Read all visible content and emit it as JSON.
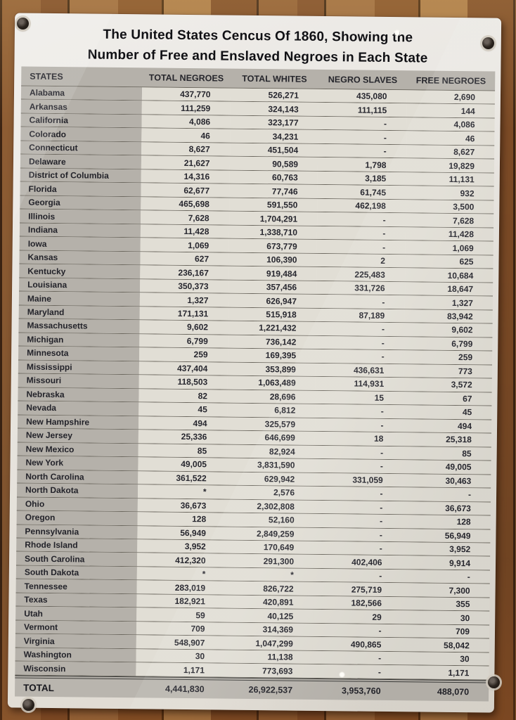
{
  "poster": {
    "title_line1": "The United States Cencus Of 1860, Showing the",
    "title_line2": "Number of Free and Enslaved Negroes in Each State",
    "table": {
      "columns": [
        "STATES",
        "TOTAL NEGROES",
        "TOTAL WHITES",
        "NEGRO SLAVES",
        "FREE NEGROES"
      ],
      "rows": [
        {
          "state": "Alabama",
          "values": [
            "437,770",
            "526,271",
            "435,080",
            "2,690"
          ]
        },
        {
          "state": "Arkansas",
          "values": [
            "111,259",
            "324,143",
            "111,115",
            "144"
          ]
        },
        {
          "state": "California",
          "values": [
            "4,086",
            "323,177",
            "-",
            "4,086"
          ]
        },
        {
          "state": "Colorado",
          "values": [
            "46",
            "34,231",
            "-",
            "46"
          ]
        },
        {
          "state": "Connecticut",
          "values": [
            "8,627",
            "451,504",
            "-",
            "8,627"
          ]
        },
        {
          "state": "Delaware",
          "values": [
            "21,627",
            "90,589",
            "1,798",
            "19,829"
          ]
        },
        {
          "state": "District of Columbia",
          "values": [
            "14,316",
            "60,763",
            "3,185",
            "11,131"
          ]
        },
        {
          "state": "Florida",
          "values": [
            "62,677",
            "77,746",
            "61,745",
            "932"
          ]
        },
        {
          "state": "Georgia",
          "values": [
            "465,698",
            "591,550",
            "462,198",
            "3,500"
          ]
        },
        {
          "state": "Illinois",
          "values": [
            "7,628",
            "1,704,291",
            "-",
            "7,628"
          ]
        },
        {
          "state": "Indiana",
          "values": [
            "11,428",
            "1,338,710",
            "-",
            "11,428"
          ]
        },
        {
          "state": "Iowa",
          "values": [
            "1,069",
            "673,779",
            "-",
            "1,069"
          ]
        },
        {
          "state": "Kansas",
          "values": [
            "627",
            "106,390",
            "2",
            "625"
          ]
        },
        {
          "state": "Kentucky",
          "values": [
            "236,167",
            "919,484",
            "225,483",
            "10,684"
          ]
        },
        {
          "state": "Louisiana",
          "values": [
            "350,373",
            "357,456",
            "331,726",
            "18,647"
          ]
        },
        {
          "state": "Maine",
          "values": [
            "1,327",
            "626,947",
            "-",
            "1,327"
          ]
        },
        {
          "state": "Maryland",
          "values": [
            "171,131",
            "515,918",
            "87,189",
            "83,942"
          ]
        },
        {
          "state": "Massachusetts",
          "values": [
            "9,602",
            "1,221,432",
            "-",
            "9,602"
          ]
        },
        {
          "state": "Michigan",
          "values": [
            "6,799",
            "736,142",
            "-",
            "6,799"
          ]
        },
        {
          "state": "Minnesota",
          "values": [
            "259",
            "169,395",
            "-",
            "259"
          ]
        },
        {
          "state": "Mississippi",
          "values": [
            "437,404",
            "353,899",
            "436,631",
            "773"
          ]
        },
        {
          "state": "Missouri",
          "values": [
            "118,503",
            "1,063,489",
            "114,931",
            "3,572"
          ]
        },
        {
          "state": "Nebraska",
          "values": [
            "82",
            "28,696",
            "15",
            "67"
          ]
        },
        {
          "state": "Nevada",
          "values": [
            "45",
            "6,812",
            "-",
            "45"
          ]
        },
        {
          "state": "New Hampshire",
          "values": [
            "494",
            "325,579",
            "-",
            "494"
          ]
        },
        {
          "state": "New Jersey",
          "values": [
            "25,336",
            "646,699",
            "18",
            "25,318"
          ]
        },
        {
          "state": "New Mexico",
          "values": [
            "85",
            "82,924",
            "-",
            "85"
          ]
        },
        {
          "state": "New York",
          "values": [
            "49,005",
            "3,831,590",
            "-",
            "49,005"
          ]
        },
        {
          "state": "North Carolina",
          "values": [
            "361,522",
            "629,942",
            "331,059",
            "30,463"
          ]
        },
        {
          "state": "North Dakota",
          "values": [
            "*",
            "2,576",
            "-",
            "-"
          ]
        },
        {
          "state": "Ohio",
          "values": [
            "36,673",
            "2,302,808",
            "-",
            "36,673"
          ]
        },
        {
          "state": "Oregon",
          "values": [
            "128",
            "52,160",
            "-",
            "128"
          ]
        },
        {
          "state": "Pennsylvania",
          "values": [
            "56,949",
            "2,849,259",
            "-",
            "56,949"
          ]
        },
        {
          "state": "Rhode Island",
          "values": [
            "3,952",
            "170,649",
            "-",
            "3,952"
          ]
        },
        {
          "state": "South Carolina",
          "values": [
            "412,320",
            "291,300",
            "402,406",
            "9,914"
          ]
        },
        {
          "state": "South Dakota",
          "values": [
            "*",
            "*",
            "-",
            "-"
          ]
        },
        {
          "state": "Tennessee",
          "values": [
            "283,019",
            "826,722",
            "275,719",
            "7,300"
          ]
        },
        {
          "state": "Texas",
          "values": [
            "182,921",
            "420,891",
            "182,566",
            "355"
          ]
        },
        {
          "state": "Utah",
          "values": [
            "59",
            "40,125",
            "29",
            "30"
          ]
        },
        {
          "state": "Vermont",
          "values": [
            "709",
            "314,369",
            "-",
            "709"
          ]
        },
        {
          "state": "Virginia",
          "values": [
            "548,907",
            "1,047,299",
            "490,865",
            "58,042"
          ]
        },
        {
          "state": "Washington",
          "values": [
            "30",
            "11,138",
            "-",
            "30"
          ]
        },
        {
          "state": "Wisconsin",
          "values": [
            "1,171",
            "773,693",
            "-",
            "1,171"
          ]
        }
      ],
      "total": {
        "label": "TOTAL",
        "values": [
          "4,441,830",
          "26,922,537",
          "3,953,760",
          "488,070"
        ]
      }
    }
  },
  "colors": {
    "paper": "#e8e5df",
    "band_gray": "#b5b1aa",
    "numeric_bg": "#e1ded5",
    "rule_line": "#6b675e",
    "wood": "#8d5c33"
  }
}
